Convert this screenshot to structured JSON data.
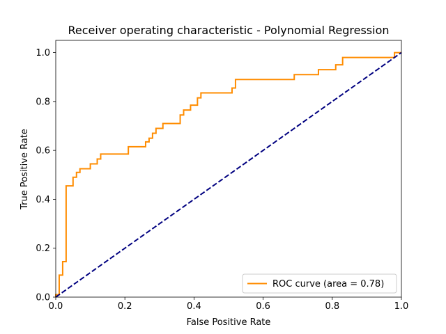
{
  "chart_data": {
    "type": "line",
    "title": "Receiver operating characteristic - Polynomial Regression",
    "xlabel": "False Positive Rate",
    "ylabel": "True Positive Rate",
    "xlim": [
      0.0,
      1.0
    ],
    "ylim": [
      0.0,
      1.05
    ],
    "xticks": [
      "0.0",
      "0.2",
      "0.4",
      "0.6",
      "0.8",
      "1.0"
    ],
    "yticks": [
      "0.0",
      "0.2",
      "0.4",
      "0.6",
      "0.8",
      "1.0"
    ],
    "grid": false,
    "legend_position": "lower-right",
    "series": [
      {
        "name": "ROC curve (area = 0.78)",
        "color": "#ff8c00",
        "style": "solid",
        "x": [
          0.0,
          0.0,
          0.01,
          0.01,
          0.02,
          0.02,
          0.03,
          0.03,
          0.05,
          0.05,
          0.06,
          0.06,
          0.07,
          0.07,
          0.1,
          0.1,
          0.12,
          0.12,
          0.13,
          0.13,
          0.21,
          0.21,
          0.26,
          0.26,
          0.27,
          0.27,
          0.28,
          0.28,
          0.29,
          0.29,
          0.31,
          0.31,
          0.36,
          0.36,
          0.37,
          0.37,
          0.39,
          0.39,
          0.41,
          0.41,
          0.42,
          0.42,
          0.51,
          0.51,
          0.52,
          0.52,
          0.69,
          0.69,
          0.76,
          0.76,
          0.81,
          0.81,
          0.83,
          0.83,
          0.98,
          0.98,
          1.0
        ],
        "y": [
          0.0,
          0.01,
          0.01,
          0.09,
          0.09,
          0.145,
          0.145,
          0.455,
          0.455,
          0.49,
          0.49,
          0.51,
          0.51,
          0.525,
          0.525,
          0.545,
          0.545,
          0.565,
          0.565,
          0.585,
          0.585,
          0.615,
          0.615,
          0.635,
          0.635,
          0.65,
          0.65,
          0.67,
          0.67,
          0.69,
          0.69,
          0.71,
          0.71,
          0.745,
          0.745,
          0.765,
          0.765,
          0.785,
          0.785,
          0.815,
          0.815,
          0.835,
          0.835,
          0.855,
          0.855,
          0.89,
          0.89,
          0.91,
          0.91,
          0.93,
          0.93,
          0.95,
          0.95,
          0.98,
          0.98,
          1.0,
          1.0
        ]
      },
      {
        "name": "",
        "color": "#000080",
        "style": "dashed",
        "x": [
          0.0,
          1.0
        ],
        "y": [
          0.0,
          1.0
        ]
      }
    ]
  }
}
